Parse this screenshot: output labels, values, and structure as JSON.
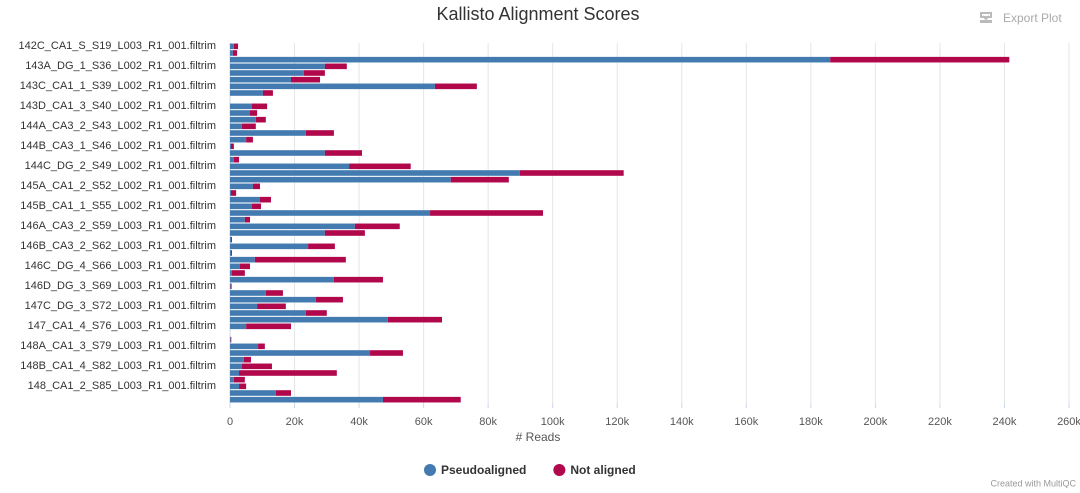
{
  "chart_data": {
    "type": "stacked_bar_horizontal",
    "title": "Kallisto Alignment Scores",
    "export_label": "Export Plot",
    "credit": "Created with MultiQC",
    "xlabel": "# Reads",
    "categories": [
      "142C_CA1_S_S19_L003_R1_001.filtrim",
      null,
      null,
      "143A_DG_1_S36_L002_R1_001.filtrim",
      null,
      null,
      "143C_CA1_1_S39_L002_R1_001.filtrim",
      null,
      null,
      "143D_CA1_3_S40_L002_R1_001.filtrim",
      null,
      null,
      "144A_CA3_2_S43_L002_R1_001.filtrim",
      null,
      null,
      "144B_CA3_1_S46_L002_R1_001.filtrim",
      null,
      null,
      "144C_DG_2_S49_L002_R1_001.filtrim",
      null,
      null,
      "145A_CA1_2_S52_L002_R1_001.filtrim",
      null,
      null,
      "145B_CA1_1_S55_L002_R1_001.filtrim",
      null,
      null,
      "146A_CA3_2_S59_L003_R1_001.filtrim",
      null,
      null,
      "146B_CA3_2_S62_L003_R1_001.filtrim",
      null,
      null,
      "146C_DG_4_S66_L003_R1_001.filtrim",
      null,
      null,
      "146D_DG_3_S69_L003_R1_001.filtrim",
      null,
      null,
      "147C_DG_3_S72_L003_R1_001.filtrim",
      null,
      null,
      "147_CA1_4_S76_L003_R1_001.filtrim",
      null,
      null,
      "148A_CA1_3_S79_L003_R1_001.filtrim",
      null,
      null,
      "148B_CA1_4_S82_L003_R1_001.filtrim",
      null,
      null,
      "148_CA1_2_S85_L003_R1_001.filtrim",
      null,
      null
    ],
    "series": [
      {
        "name": "Pseudoaligned",
        "color": "#437bb1",
        "values": [
          1200,
          900,
          186000,
          29400,
          22900,
          18900,
          63500,
          10200,
          0,
          6800,
          6200,
          8000,
          3700,
          23500,
          5000,
          300,
          29400,
          1200,
          36900,
          89800,
          68400,
          7100,
          300,
          9300,
          6800,
          62000,
          4600,
          38700,
          29400,
          300,
          24200,
          300,
          7700,
          3100,
          600,
          32200,
          200,
          11100,
          26600,
          8400,
          23500,
          48900,
          5000,
          0,
          200,
          8700,
          43400,
          4300,
          3700,
          2800,
          1200,
          2800,
          14200,
          47400
        ]
      },
      {
        "name": "Not aligned",
        "color": "#b1084c",
        "values": [
          1300,
          1300,
          55500,
          6800,
          6500,
          9000,
          13000,
          3100,
          0,
          4700,
          2200,
          3100,
          4300,
          8700,
          2100,
          900,
          11500,
          1600,
          19100,
          32200,
          18000,
          2200,
          1600,
          3400,
          2800,
          35000,
          1600,
          13900,
          12400,
          300,
          8300,
          300,
          28200,
          3100,
          4000,
          15200,
          300,
          5300,
          8400,
          8900,
          6500,
          16800,
          13900,
          0,
          200,
          2100,
          10200,
          2200,
          9300,
          30300,
          3400,
          2200,
          4700,
          24100
        ]
      }
    ],
    "xlim": [
      0,
      260000
    ],
    "xticks": [
      0,
      {
        "value": 20000,
        "label": "20k"
      },
      {
        "value": 40000,
        "label": "40k"
      },
      {
        "value": 60000,
        "label": "60k"
      },
      {
        "value": 80000,
        "label": "80k"
      },
      {
        "value": 100000,
        "label": "100k"
      },
      {
        "value": 120000,
        "label": "120k"
      },
      {
        "value": 140000,
        "label": "140k"
      },
      {
        "value": 160000,
        "label": "160k"
      },
      {
        "value": 180000,
        "label": "180k"
      },
      {
        "value": 200000,
        "label": "200k"
      },
      {
        "value": 220000,
        "label": "220k"
      },
      {
        "value": 240000,
        "label": "240k"
      },
      {
        "value": 260000,
        "label": "260k"
      }
    ],
    "grid": true,
    "legend": "bottom"
  }
}
